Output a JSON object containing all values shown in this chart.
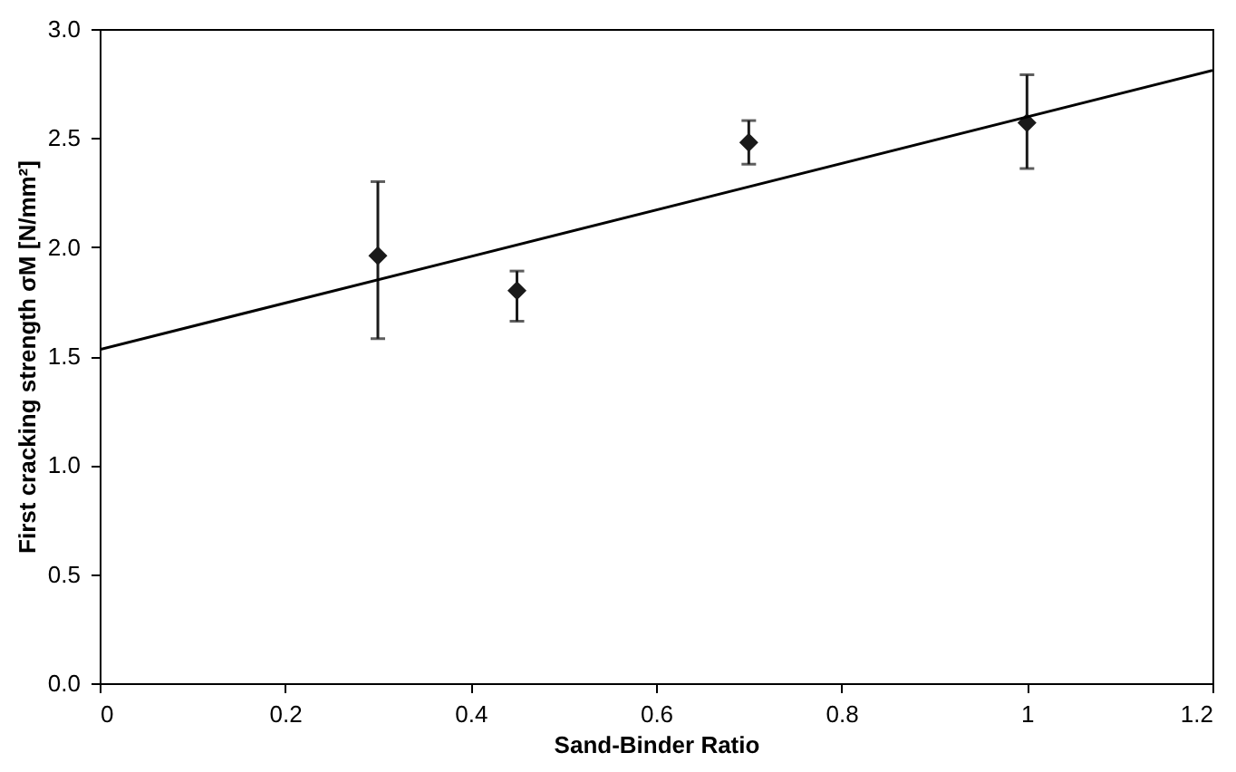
{
  "chart_data": {
    "type": "scatter",
    "xlabel": "Sand-Binder Ratio",
    "ylabel": "First cracking strength σM [N/mm²]",
    "marker": "diamond",
    "grid": false,
    "xlim": [
      0,
      1.2
    ],
    "xticks": [
      0,
      0.2,
      0.4,
      0.6,
      0.8,
      1,
      1.2
    ],
    "ylim": [
      0,
      3
    ],
    "yticks": [
      {
        "value": 0,
        "label": "0.0"
      },
      {
        "value": 0.5,
        "label": "0.5"
      },
      {
        "value": 1,
        "label": "1.0"
      },
      {
        "value": 1.5,
        "label": "1.5"
      },
      {
        "value": 2,
        "label": "2.0"
      },
      {
        "value": 2.5,
        "label": "2.5"
      },
      {
        "value": 3,
        "label": "3.0"
      }
    ],
    "series": [
      {
        "color": "#1a1a1a",
        "x": [
          0.3,
          0.45,
          0.7,
          1.0
        ],
        "values": [
          1.96,
          1.8,
          2.48,
          2.57
        ],
        "errors": [
          [
            1.58,
            2.3
          ],
          [
            1.66,
            1.89
          ],
          [
            2.38,
            2.58
          ],
          [
            2.36,
            2.79
          ]
        ]
      },
      {
        "type": "line",
        "color": "#000000",
        "line_style": "solid",
        "marker": "none",
        "x": [
          0,
          1.2
        ],
        "values": [
          1.53,
          2.81
        ]
      }
    ]
  }
}
